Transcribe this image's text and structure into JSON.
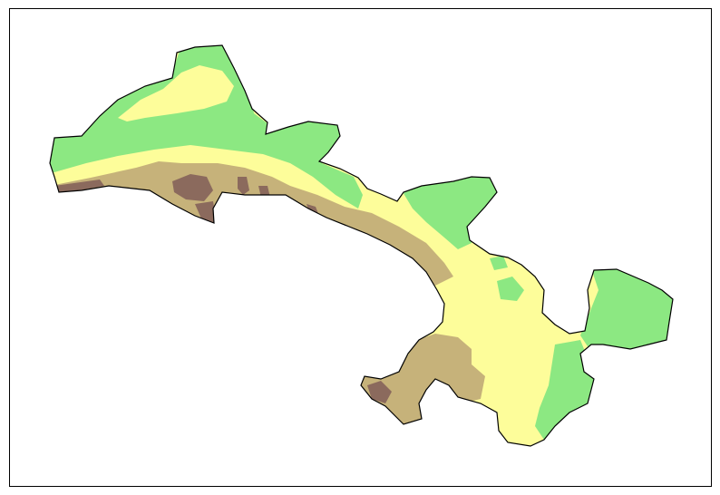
{
  "map": {
    "colors": {
      "background": "#ffffff",
      "frame": "#000000",
      "outline": "#000000",
      "low_green": "#8ce882",
      "mid_yellow": "#fdfd9a",
      "high_tan": "#c6b27a",
      "peak_brown": "#8b6a5d"
    },
    "elevation_classes": [
      {
        "id": "low-lowland",
        "color_key": "low_green"
      },
      {
        "id": "mid-plateau",
        "color_key": "mid_yellow"
      },
      {
        "id": "high-upland",
        "color_key": "high_tan"
      },
      {
        "id": "peak-mountain",
        "color_key": "peak_brown"
      }
    ]
  }
}
